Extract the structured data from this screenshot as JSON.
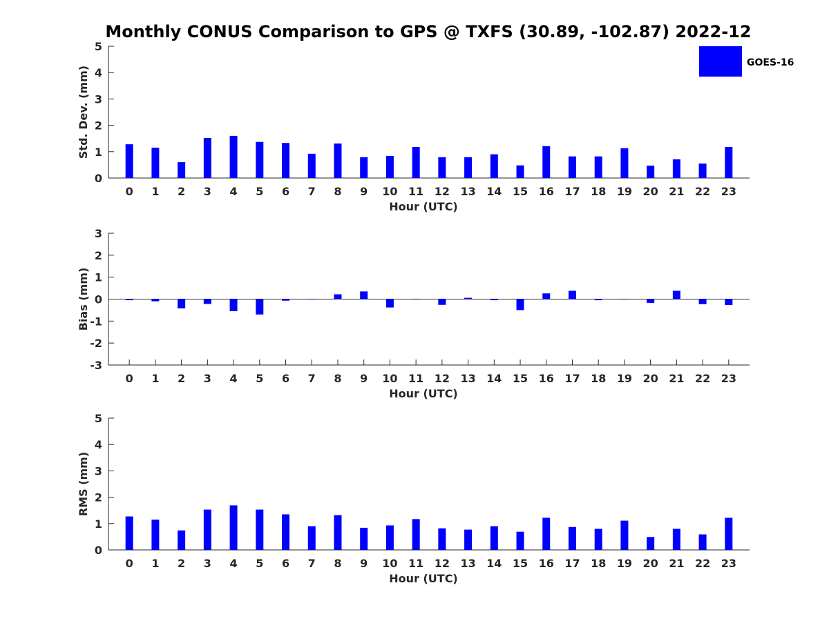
{
  "figure": {
    "title": "Monthly CONUS Comparison to GPS @ TXFS (30.89, -102.87) 2022-12"
  },
  "legend": {
    "label": "GOES-16",
    "color": "#0000ff",
    "placement": "top-right"
  },
  "chart_data": [
    {
      "type": "bar",
      "xlabel": "Hour (UTC)",
      "ylabel": "Std. Dev. (mm)",
      "ylim": [
        0,
        5
      ],
      "yticks": [
        0,
        1,
        2,
        3,
        4,
        5
      ],
      "categories": [
        "0",
        "1",
        "2",
        "3",
        "4",
        "5",
        "6",
        "7",
        "8",
        "9",
        "10",
        "11",
        "12",
        "13",
        "14",
        "15",
        "16",
        "17",
        "18",
        "19",
        "20",
        "21",
        "22",
        "23"
      ],
      "series": [
        {
          "name": "GOES-16",
          "values": [
            1.28,
            1.15,
            0.6,
            1.52,
            1.6,
            1.37,
            1.33,
            0.92,
            1.31,
            0.79,
            0.84,
            1.18,
            0.79,
            0.79,
            0.9,
            0.48,
            1.21,
            0.82,
            0.82,
            1.13,
            0.47,
            0.71,
            0.55,
            1.18
          ]
        }
      ],
      "grid": false
    },
    {
      "type": "bar",
      "xlabel": "Hour (UTC)",
      "ylabel": "Bias (mm)",
      "ylim": [
        -3,
        3
      ],
      "yticks": [
        -3,
        -2,
        -1,
        0,
        1,
        2,
        3
      ],
      "categories": [
        "0",
        "1",
        "2",
        "3",
        "4",
        "5",
        "6",
        "7",
        "8",
        "9",
        "10",
        "11",
        "12",
        "13",
        "14",
        "15",
        "16",
        "17",
        "18",
        "19",
        "20",
        "21",
        "22",
        "23"
      ],
      "series": [
        {
          "name": "GOES-16",
          "values": [
            -0.05,
            -0.1,
            -0.42,
            -0.22,
            -0.55,
            -0.7,
            -0.07,
            0.0,
            0.22,
            0.35,
            -0.38,
            -0.02,
            -0.26,
            0.06,
            -0.05,
            -0.5,
            0.26,
            0.38,
            -0.05,
            0.0,
            -0.17,
            0.38,
            -0.23,
            -0.27
          ]
        }
      ],
      "grid": false
    },
    {
      "type": "bar",
      "xlabel": "Hour (UTC)",
      "ylabel": "RMS (mm)",
      "ylim": [
        0,
        5
      ],
      "yticks": [
        0,
        1,
        2,
        3,
        4,
        5
      ],
      "categories": [
        "0",
        "1",
        "2",
        "3",
        "4",
        "5",
        "6",
        "7",
        "8",
        "9",
        "10",
        "11",
        "12",
        "13",
        "14",
        "15",
        "16",
        "17",
        "18",
        "19",
        "20",
        "21",
        "22",
        "23"
      ],
      "series": [
        {
          "name": "GOES-16",
          "values": [
            1.27,
            1.15,
            0.74,
            1.53,
            1.69,
            1.53,
            1.35,
            0.9,
            1.32,
            0.84,
            0.93,
            1.17,
            0.82,
            0.77,
            0.9,
            0.69,
            1.22,
            0.87,
            0.8,
            1.11,
            0.49,
            0.8,
            0.59,
            1.22
          ]
        }
      ],
      "grid": false
    }
  ]
}
